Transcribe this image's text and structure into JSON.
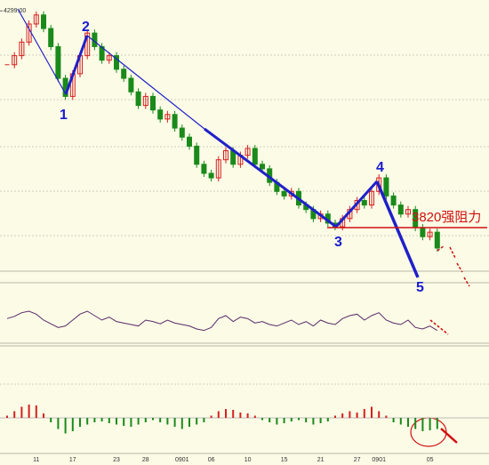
{
  "chart_data": {
    "type": "candlestick",
    "values": [
      4180,
      4200,
      4230,
      4270,
      4290,
      4260,
      4220,
      4150,
      4110,
      4160,
      4200,
      4250,
      4220,
      4190,
      4200,
      4170,
      4150,
      4120,
      4090,
      4110,
      4080,
      4060,
      4070,
      4040,
      4020,
      4000,
      3960,
      3940,
      3930,
      3970,
      3990,
      3960,
      3980,
      3995,
      3960,
      3950,
      3920,
      3900,
      3890,
      3900,
      3870,
      3860,
      3840,
      3850,
      3830,
      3822,
      3840,
      3860,
      3880,
      3870,
      3900,
      3930,
      3890,
      3870,
      3850,
      3860,
      3820,
      3800,
      3810,
      3775
    ],
    "categories": [
      null,
      null,
      null,
      null,
      "11",
      null,
      null,
      null,
      null,
      "17",
      null,
      null,
      null,
      null,
      null,
      "23",
      null,
      null,
      null,
      "28",
      null,
      null,
      null,
      null,
      "0901",
      null,
      null,
      null,
      "06",
      null,
      null,
      null,
      null,
      "10",
      null,
      null,
      null,
      null,
      "15",
      null,
      null,
      null,
      null,
      "21",
      null,
      null,
      null,
      null,
      "27",
      null,
      null,
      "0901",
      null,
      null,
      null,
      null,
      null,
      null,
      "05",
      null
    ],
    "ylim": [
      3714,
      4323
    ],
    "yticks": [
      {
        "value": 4299,
        "label": "4299.00"
      }
    ],
    "up_color": "#d62020",
    "down_color": "#1a8a1a",
    "resistance": {
      "value": 3820,
      "label": "3820强阻力",
      "color": "#d01010"
    },
    "annotations": [
      "1",
      "2",
      "3",
      "4",
      "5"
    ],
    "rsi": {
      "values": [
        52,
        55,
        60,
        62,
        58,
        50,
        45,
        40,
        42,
        50,
        58,
        62,
        56,
        50,
        54,
        48,
        46,
        44,
        42,
        50,
        48,
        45,
        50,
        46,
        44,
        42,
        38,
        36,
        40,
        52,
        56,
        48,
        54,
        52,
        46,
        48,
        44,
        42,
        46,
        50,
        44,
        48,
        42,
        50,
        46,
        44,
        52,
        56,
        58,
        50,
        56,
        60,
        50,
        46,
        44,
        50,
        40,
        38,
        42,
        36
      ],
      "ylim": [
        20,
        80
      ],
      "color": "#5a2a6a"
    },
    "macd": {
      "values": [
        5,
        15,
        25,
        30,
        28,
        10,
        -10,
        -25,
        -35,
        -30,
        -20,
        -15,
        -10,
        -8,
        -12,
        -15,
        -18,
        -20,
        -15,
        -10,
        -5,
        -10,
        -15,
        -20,
        -25,
        -20,
        -15,
        -10,
        5,
        15,
        20,
        18,
        12,
        10,
        5,
        -5,
        -10,
        -15,
        -12,
        -8,
        -5,
        -10,
        -15,
        -12,
        -8,
        5,
        10,
        15,
        12,
        20,
        25,
        15,
        5,
        -10,
        -15,
        -20,
        -25,
        -30,
        -28,
        -25
      ],
      "ylim": [
        -60,
        60
      ]
    }
  }
}
